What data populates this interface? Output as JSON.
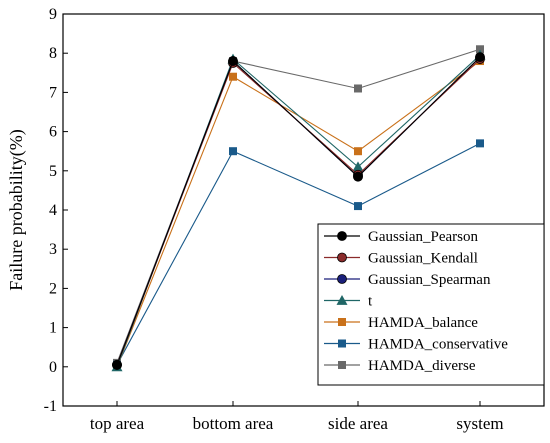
{
  "chart_data": {
    "type": "line",
    "title": "",
    "xlabel": "",
    "ylabel": "Failure probability(%)",
    "categories": [
      "top area",
      "bottom area",
      "side area",
      "system"
    ],
    "ylim": [
      -1,
      9
    ],
    "yticks": [
      -1,
      0,
      1,
      2,
      3,
      4,
      5,
      6,
      7,
      8,
      9
    ],
    "grid": false,
    "legend": "bottom-right",
    "series": [
      {
        "name": "Gaussian_Pearson",
        "values": [
          0.05,
          7.8,
          4.85,
          7.9
        ],
        "color": "#000000",
        "marker": "circle"
      },
      {
        "name": "Gaussian_Kendall",
        "values": [
          0.05,
          7.75,
          4.9,
          7.85
        ],
        "color": "#8b2b2b",
        "marker": "circle"
      },
      {
        "name": "Gaussian_Spearman",
        "values": [
          0.05,
          7.8,
          4.85,
          7.9
        ],
        "color": "#1a1f7a",
        "marker": "circle"
      },
      {
        "name": "t",
        "values": [
          0.0,
          7.85,
          5.1,
          7.95
        ],
        "color": "#1f6666",
        "marker": "triangle"
      },
      {
        "name": "HAMDA_balance",
        "values": [
          0.0,
          7.4,
          5.5,
          7.8
        ],
        "color": "#c9711a",
        "marker": "square"
      },
      {
        "name": "HAMDA_conservative",
        "values": [
          0.05,
          5.5,
          4.1,
          5.7
        ],
        "color": "#1a5a8a",
        "marker": "square"
      },
      {
        "name": "HAMDA_diverse",
        "values": [
          0.1,
          7.8,
          7.1,
          8.1
        ],
        "color": "#696969",
        "marker": "square"
      }
    ]
  }
}
